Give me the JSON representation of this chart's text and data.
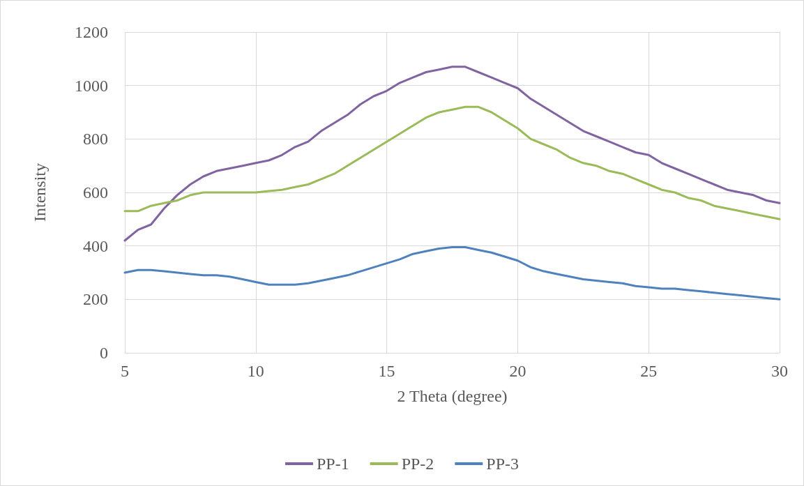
{
  "chart_data": {
    "type": "line",
    "xlabel": "2 Theta (degree)",
    "ylabel": "Intensity",
    "x": [
      5,
      5.5,
      6,
      6.5,
      7,
      7.5,
      8,
      8.5,
      9,
      9.5,
      10,
      10.5,
      11,
      11.5,
      12,
      12.5,
      13,
      13.5,
      14,
      14.5,
      15,
      15.5,
      16,
      16.5,
      17,
      17.5,
      18,
      18.5,
      19,
      19.5,
      20,
      20.5,
      21,
      21.5,
      22,
      22.5,
      23,
      23.5,
      24,
      24.5,
      25,
      25.5,
      26,
      26.5,
      27,
      27.5,
      28,
      28.5,
      29,
      29.5,
      30
    ],
    "series": [
      {
        "name": "PP-1",
        "color": "#8064a2",
        "values": [
          420,
          460,
          480,
          540,
          590,
          630,
          660,
          680,
          690,
          700,
          710,
          720,
          740,
          770,
          790,
          830,
          860,
          890,
          930,
          960,
          980,
          1010,
          1030,
          1050,
          1060,
          1070,
          1070,
          1050,
          1030,
          1010,
          990,
          950,
          920,
          890,
          860,
          830,
          810,
          790,
          770,
          750,
          740,
          710,
          690,
          670,
          650,
          630,
          610,
          600,
          590,
          570,
          560
        ]
      },
      {
        "name": "PP-2",
        "color": "#9bbb59",
        "values": [
          530,
          530,
          550,
          560,
          570,
          590,
          600,
          600,
          600,
          600,
          600,
          605,
          610,
          620,
          630,
          650,
          670,
          700,
          730,
          760,
          790,
          820,
          850,
          880,
          900,
          910,
          920,
          920,
          900,
          870,
          840,
          800,
          780,
          760,
          730,
          710,
          700,
          680,
          670,
          650,
          630,
          610,
          600,
          580,
          570,
          550,
          540,
          530,
          520,
          510,
          500
        ]
      },
      {
        "name": "PP-3",
        "color": "#4f81bd",
        "values": [
          300,
          310,
          310,
          305,
          300,
          295,
          290,
          290,
          285,
          275,
          265,
          255,
          255,
          255,
          260,
          270,
          280,
          290,
          305,
          320,
          335,
          350,
          370,
          380,
          390,
          395,
          395,
          385,
          375,
          360,
          345,
          320,
          305,
          295,
          285,
          275,
          270,
          265,
          260,
          250,
          245,
          240,
          240,
          235,
          230,
          225,
          220,
          215,
          210,
          205,
          200
        ]
      }
    ],
    "xlim": [
      5,
      30
    ],
    "xticks": [
      5,
      10,
      15,
      20,
      25,
      30
    ],
    "ylim": [
      0,
      1200
    ],
    "yticks": [
      0,
      200,
      400,
      600,
      800,
      1000,
      1200
    ],
    "grid": true,
    "legend": "bottom",
    "marker": "none",
    "line_style": "solid"
  }
}
